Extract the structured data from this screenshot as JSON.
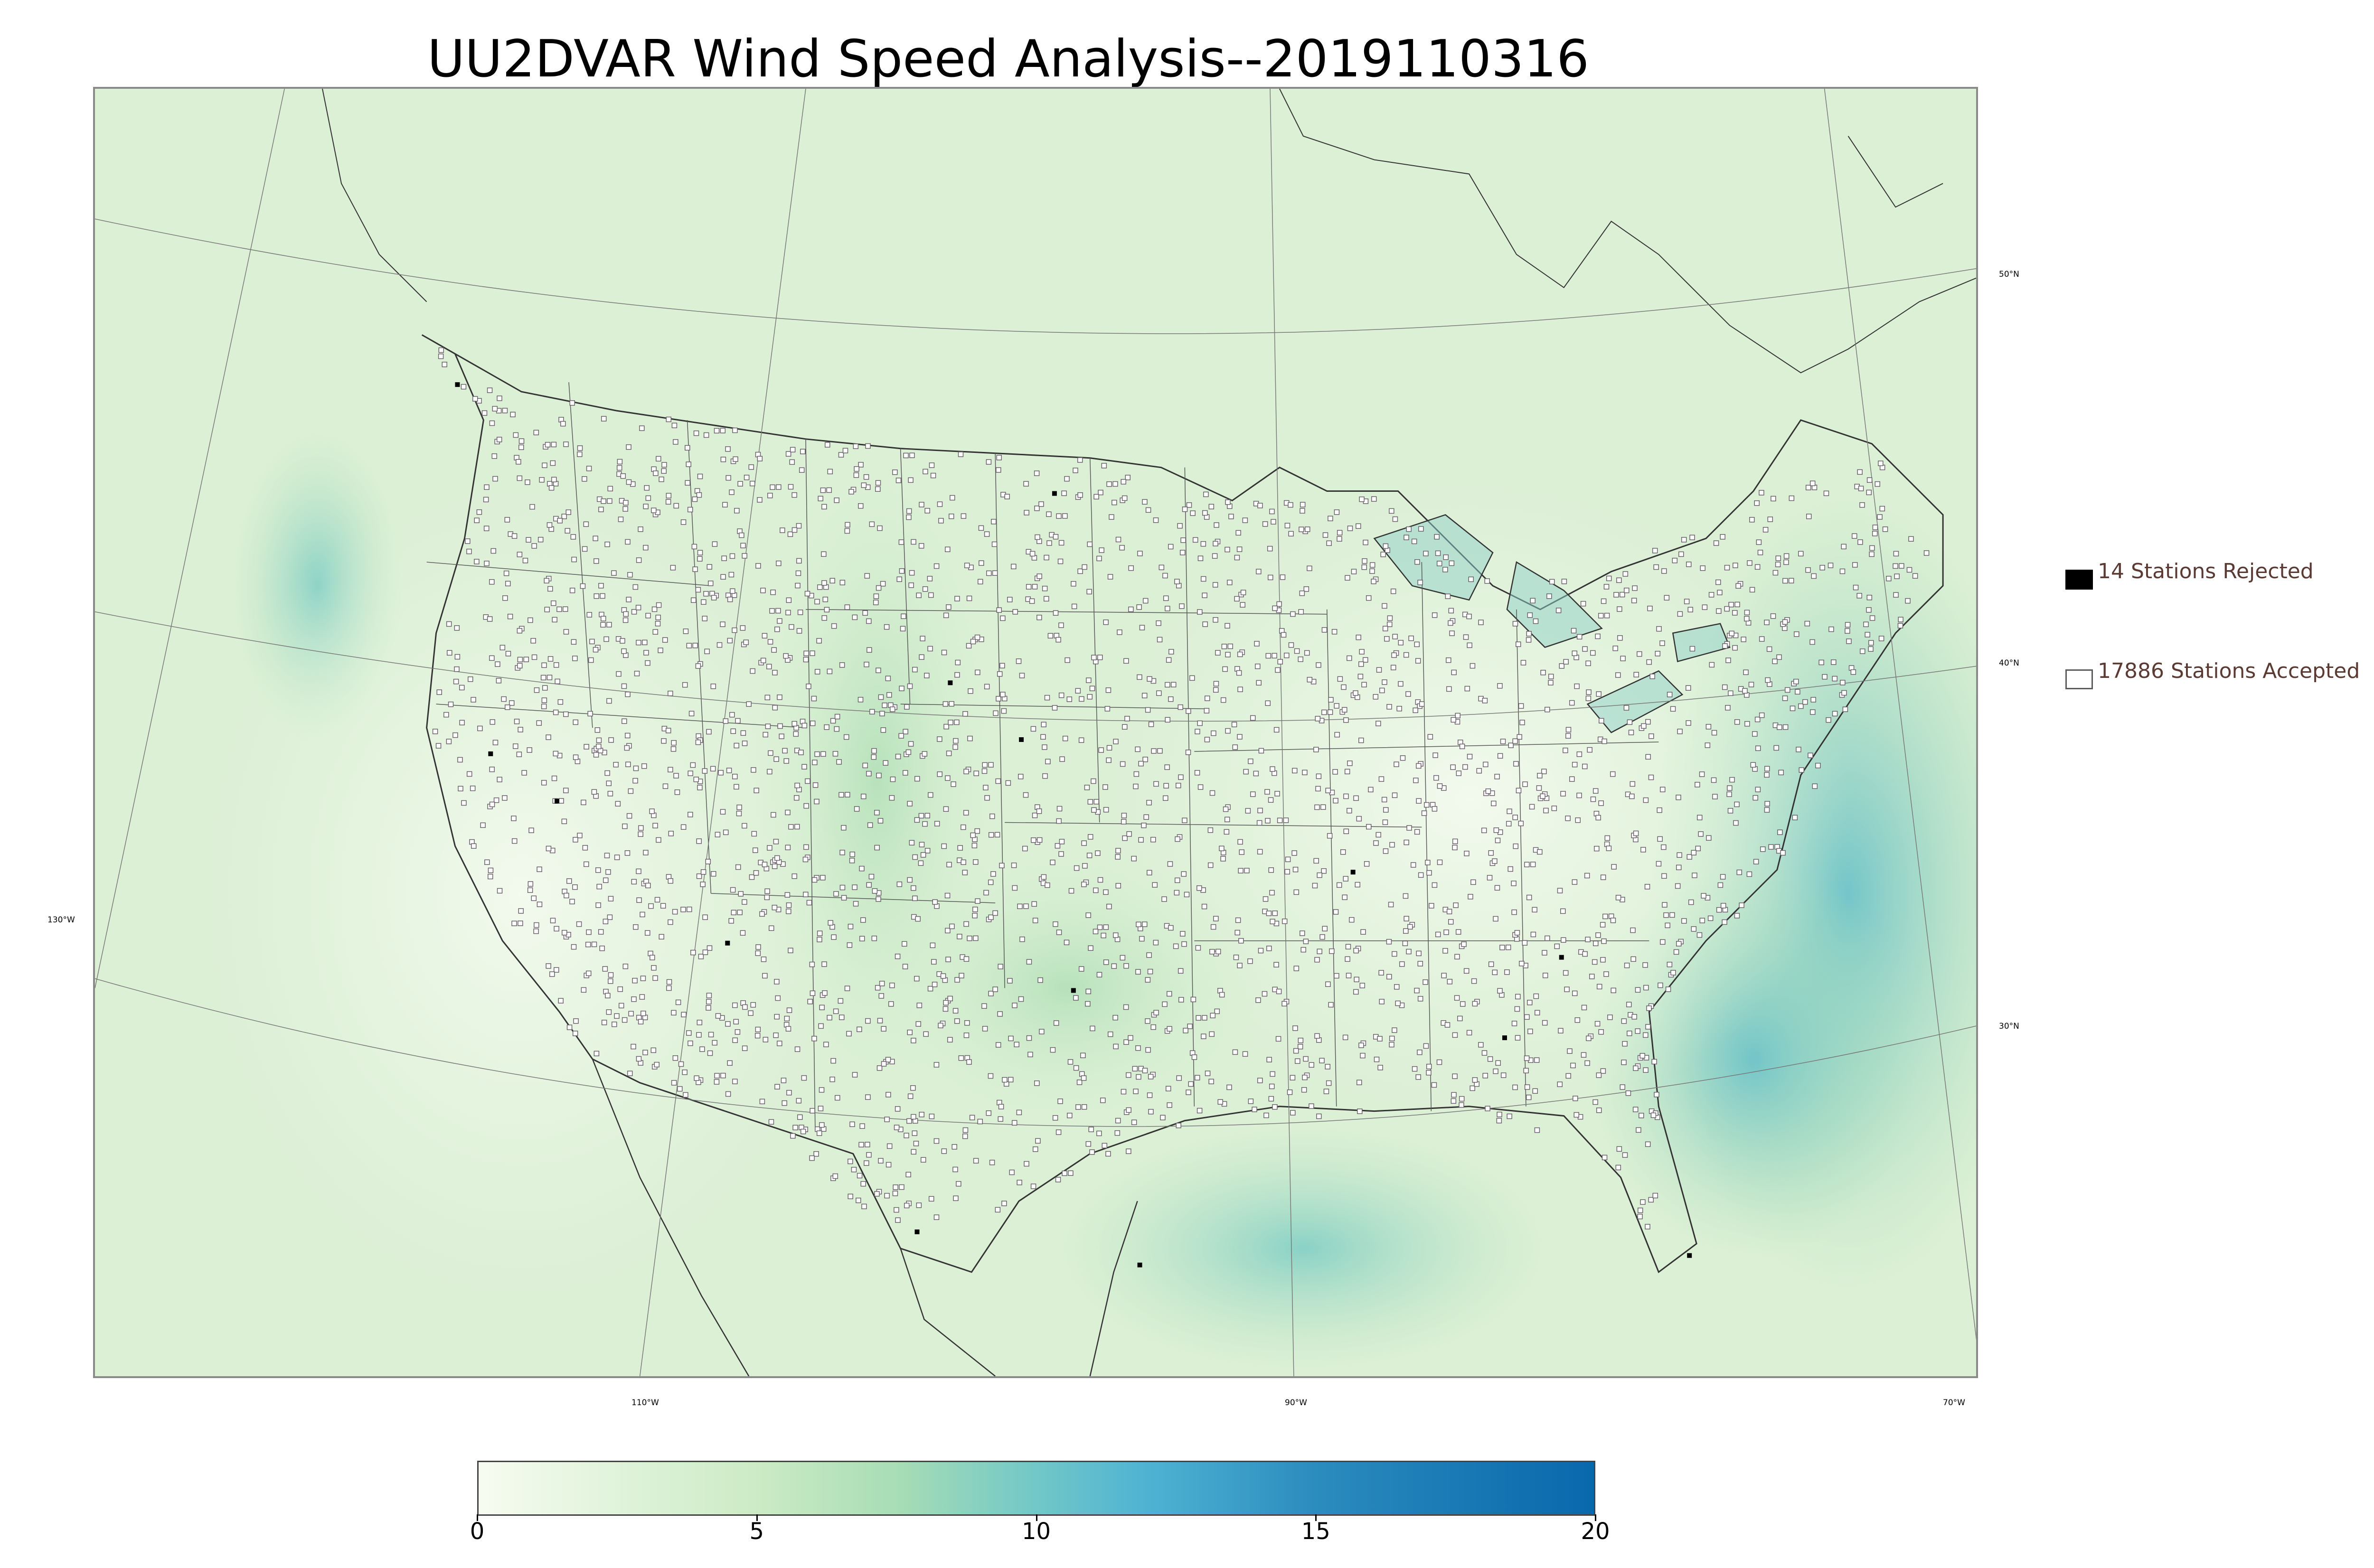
{
  "title": "UU2DVAR Wind Speed Analysis--2019110316",
  "map": {
    "longitude_labels": [
      "130°W",
      "110°W",
      "90°W",
      "70°W"
    ],
    "latitude_labels": [
      "50°N",
      "40°N",
      "30°N"
    ],
    "accepted_station_style": "hollow-square",
    "rejected_station_style": "filled-black-square"
  },
  "legend": {
    "rejected_label": "14 Stations Rejected",
    "accepted_label": "17886 Stations Accepted"
  },
  "colorbar": {
    "min": 0,
    "max": 20,
    "ticks": [
      "0",
      "5",
      "10",
      "15",
      "20"
    ],
    "colors": [
      "#f7fcf0",
      "#e0f3db",
      "#ccebc5",
      "#a8ddb5",
      "#7bccc4",
      "#4eb3d3",
      "#2b8cbe",
      "#0868ac"
    ],
    "stops": [
      0,
      2.5,
      5,
      7.5,
      9.5,
      12,
      15,
      20
    ]
  }
}
